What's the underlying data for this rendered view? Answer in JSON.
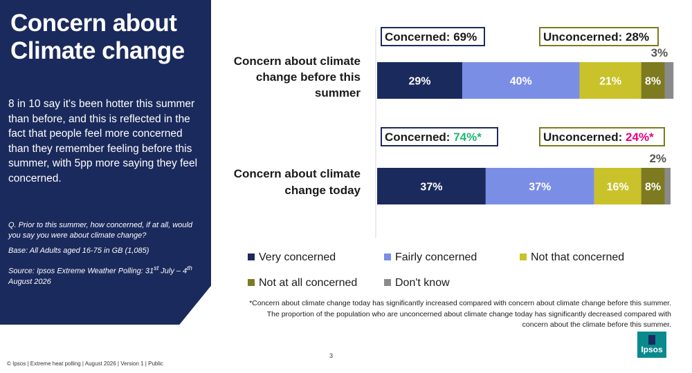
{
  "panel": {
    "title": "Concern about Climate change",
    "body": "8 in 10 say it's been hotter this summer than before, and this is reflected in the fact that people feel more concerned than they remember feeling before this summer, with 5pp more saying they feel concerned.",
    "question": "Q. Prior to this summer, how concerned, if at all, would you say you were about climate change?",
    "base": "Base: All Adults aged 16-75 in GB (1,085)",
    "source_prefix": "Source: Ipsos Extreme Weather Polling: 31",
    "source_sup1": "st",
    "source_mid": " July – 4",
    "source_sup2": "th",
    "source_suffix": " August 2026"
  },
  "chart_data": {
    "type": "bar",
    "orientation": "horizontal",
    "stacked": true,
    "categories": [
      "Concern about climate change before this summer",
      "Concern about climate change today"
    ],
    "series": [
      {
        "name": "Very concerned",
        "values": [
          29,
          37
        ],
        "color": "#1b2a5c"
      },
      {
        "name": "Fairly concerned",
        "values": [
          40,
          37
        ],
        "color": "#7b8ee6"
      },
      {
        "name": "Not that concerned",
        "values": [
          21,
          16
        ],
        "color": "#c9c22a"
      },
      {
        "name": "Not at all concerned",
        "values": [
          8,
          8
        ],
        "color": "#7d7a1f"
      },
      {
        "name": "Don't know",
        "values": [
          3,
          2
        ],
        "color": "#8a8a8a"
      }
    ],
    "data_labels": [
      [
        "29%",
        "40%",
        "21%",
        "8%",
        "3%"
      ],
      [
        "37%",
        "37%",
        "16%",
        "8%",
        "2%"
      ]
    ],
    "summary_labels": [
      {
        "concerned_prefix": "Concerned: ",
        "concerned_value": "69%",
        "unconcerned_prefix": "Unconcerned: ",
        "unconcerned_value": "28%"
      },
      {
        "concerned_prefix": "Concerned: ",
        "concerned_value": "74%*",
        "unconcerned_prefix": "Unconcerned: ",
        "unconcerned_value": "24%*"
      }
    ],
    "colors": {
      "concerned_box": "#1b2a5c",
      "unconcerned_box": "#7d7a1f",
      "increase": "#22b573",
      "decrease": "#e6007e"
    },
    "xlim": [
      0,
      100
    ],
    "legend_position": "bottom"
  },
  "footnote": {
    "line1": "*Concern about climate change today has significantly increased compared with concern about climate change before this summer.",
    "line2": "The proportion of the population who are unconcerned about climate change today has significantly decreased compared with",
    "line3": "concern about the climate before this summer."
  },
  "footer": {
    "text": "© Ipsos | Extreme heat polling | August 2026 | Version 1 | Public",
    "page_number": "3"
  },
  "logo": {
    "text": "Ipsos"
  }
}
